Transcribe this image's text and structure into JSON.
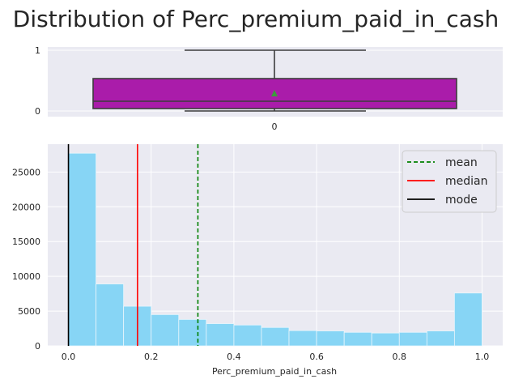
{
  "figure": {
    "title": "Distribution of Perc_premium_paid_in_cash"
  },
  "chart_data": [
    {
      "type": "boxplot",
      "orientation": "horizontal",
      "title": "",
      "xlabel": "",
      "ylabel": "",
      "yticks": [
        "0",
        "1"
      ],
      "xtick_labels": [
        "0"
      ],
      "stats": {
        "whisker_low": 0.0,
        "q1": 0.034,
        "median": 0.167,
        "mean": 0.313,
        "q3": 0.538,
        "whisker_high": 1.0
      },
      "xlim": [
        -0.05,
        1.05
      ],
      "colors": {
        "box": "#aa1caa",
        "mean_marker": "#3c9c3c",
        "background": "#eaeaf2"
      },
      "grid": true
    },
    {
      "type": "histogram",
      "title": "",
      "xlabel": "Perc_premium_paid_in_cash",
      "ylabel": "",
      "xticks": [
        "0.0",
        "0.2",
        "0.4",
        "0.6",
        "0.8",
        "1.0"
      ],
      "yticks": [
        "0",
        "5000",
        "10000",
        "15000",
        "20000",
        "25000"
      ],
      "xlim": [
        -0.05,
        1.05
      ],
      "ylim": [
        0,
        29000
      ],
      "bins": {
        "edges": [
          0.0,
          0.0667,
          0.1333,
          0.2,
          0.2667,
          0.3333,
          0.4,
          0.4667,
          0.5333,
          0.6,
          0.6667,
          0.7333,
          0.8,
          0.8667,
          0.9333,
          1.0
        ],
        "counts": [
          27700,
          8900,
          5700,
          4500,
          3800,
          3200,
          3000,
          2650,
          2200,
          2150,
          1950,
          1850,
          1950,
          2150,
          7600
        ]
      },
      "lines": [
        {
          "name": "mean",
          "x": 0.313,
          "color": "#008000",
          "style": "dashed"
        },
        {
          "name": "median",
          "x": 0.167,
          "color": "#ff0000",
          "style": "solid"
        },
        {
          "name": "mode",
          "x": 0.0,
          "color": "#000000",
          "style": "solid"
        }
      ],
      "legend_position": "top-right",
      "colors": {
        "bars": "#87d5f5",
        "background": "#eaeaf2"
      },
      "grid": true
    }
  ]
}
